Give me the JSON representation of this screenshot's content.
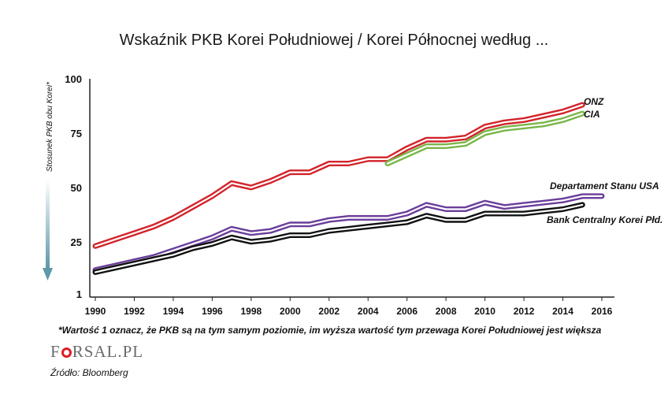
{
  "chart_data": {
    "type": "line",
    "title": "Wskaźnik PKB Korei Południowej / Korei Północnej według ...",
    "ylabel": "Stosunek PKB obu Korei*",
    "xlabel": "",
    "ylim": [
      1,
      100
    ],
    "yticks": [
      "100",
      "75",
      "50",
      "25",
      "1"
    ],
    "ytick_values": [
      100,
      75,
      50,
      25,
      1
    ],
    "xlim": [
      1990,
      2016
    ],
    "xticks": [
      "1990",
      "1992",
      "1994",
      "1996",
      "1998",
      "2000",
      "2002",
      "2004",
      "2006",
      "2008",
      "2010",
      "2012",
      "2014",
      "2016"
    ],
    "xtick_values": [
      1990,
      1992,
      1994,
      1996,
      1998,
      2000,
      2002,
      2004,
      2006,
      2008,
      2010,
      2012,
      2014,
      2016
    ],
    "grid": false,
    "series": [
      {
        "name": "ONZ",
        "color": "#d2232a",
        "x": [
          1990,
          1991,
          1992,
          1993,
          1994,
          1995,
          1996,
          1997,
          1998,
          1999,
          2000,
          2001,
          2002,
          2003,
          2004,
          2005,
          2006,
          2007,
          2008,
          2009,
          2010,
          2011,
          2012,
          2013,
          2014,
          2015
        ],
        "values": [
          23,
          26,
          29,
          32,
          36,
          41,
          46,
          52,
          50,
          53,
          57,
          57,
          61,
          61,
          63,
          63,
          68,
          72,
          72,
          73,
          78,
          80,
          81,
          83,
          85,
          88
        ]
      },
      {
        "name": "CIA",
        "color": "#7ab648",
        "x": [
          2005,
          2006,
          2007,
          2008,
          2009,
          2010,
          2011,
          2012,
          2013,
          2014,
          2015
        ],
        "values": [
          61,
          65,
          69,
          69,
          70,
          75,
          77,
          78,
          79,
          81,
          84
        ]
      },
      {
        "name": "Departament Stanu USA",
        "color": "#6a3d9a",
        "x": [
          1990,
          1991,
          1992,
          1993,
          1994,
          1995,
          1996,
          1997,
          1998,
          1999,
          2000,
          2001,
          2002,
          2003,
          2004,
          2005,
          2006,
          2007,
          2008,
          2009,
          2010,
          2011,
          2012,
          2013,
          2014,
          2015,
          2016
        ],
        "values": [
          12,
          14,
          16,
          18,
          21,
          24,
          27,
          31,
          29,
          30,
          33,
          33,
          35,
          36,
          36,
          36,
          38,
          42,
          40,
          40,
          43,
          41,
          42,
          43,
          44,
          46,
          46
        ]
      },
      {
        "name": "Bank Centralny Korei Płd.",
        "color": "#111111",
        "x": [
          1990,
          1991,
          1992,
          1993,
          1994,
          1995,
          1996,
          1997,
          1998,
          1999,
          2000,
          2001,
          2002,
          2003,
          2004,
          2005,
          2006,
          2007,
          2008,
          2009,
          2010,
          2011,
          2012,
          2013,
          2014,
          2015
        ],
        "values": [
          11,
          13,
          15,
          17,
          19,
          22,
          24,
          27,
          25,
          26,
          28,
          28,
          30,
          31,
          32,
          33,
          34,
          37,
          35,
          35,
          38,
          38,
          38,
          39,
          40,
          42
        ]
      }
    ]
  },
  "footnote": "*Wartość 1 oznacz, że PKB są na tym samym poziomie, im wyższa wartość tym przewaga Korei Południowej jest większa",
  "logo": {
    "pre": "F",
    "post": "RSAL.PL"
  },
  "source": "Źródło: Bloomberg"
}
